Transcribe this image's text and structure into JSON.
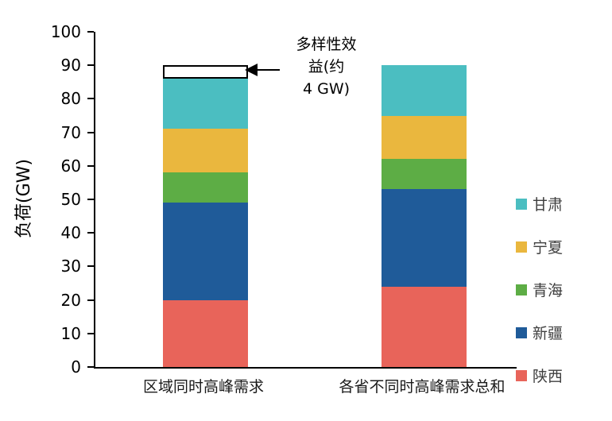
{
  "chart_data": {
    "type": "bar",
    "stacked": true,
    "title": "",
    "xlabel": "",
    "ylabel": "负荷(GW)",
    "ylim": [
      0,
      100
    ],
    "ytick_step": 10,
    "grid": false,
    "legend_position": "right",
    "categories": [
      "区域同时高峰需求",
      "各省不同时高峰需求总和"
    ],
    "series": [
      {
        "id": "shaanxi",
        "name": "陕西",
        "color": "#E8645A",
        "values": [
          20,
          24
        ]
      },
      {
        "id": "xinjiang",
        "name": "新疆",
        "color": "#1F5B99",
        "values": [
          29,
          29
        ]
      },
      {
        "id": "qinghai",
        "name": "青海",
        "color": "#5DAD45",
        "values": [
          9,
          9
        ]
      },
      {
        "id": "ningxia",
        "name": "宁夏",
        "color": "#EAB73E",
        "values": [
          13,
          13
        ]
      },
      {
        "id": "gansu",
        "name": "甘肃",
        "color": "#4BBEC1",
        "values": [
          15,
          15
        ]
      }
    ],
    "annotation": {
      "text_lines": [
        "多样性效",
        "益(约",
        "4 GW)"
      ],
      "value_gw": 4,
      "box": {
        "category_index": 0,
        "from": 86,
        "to": 90
      }
    }
  }
}
